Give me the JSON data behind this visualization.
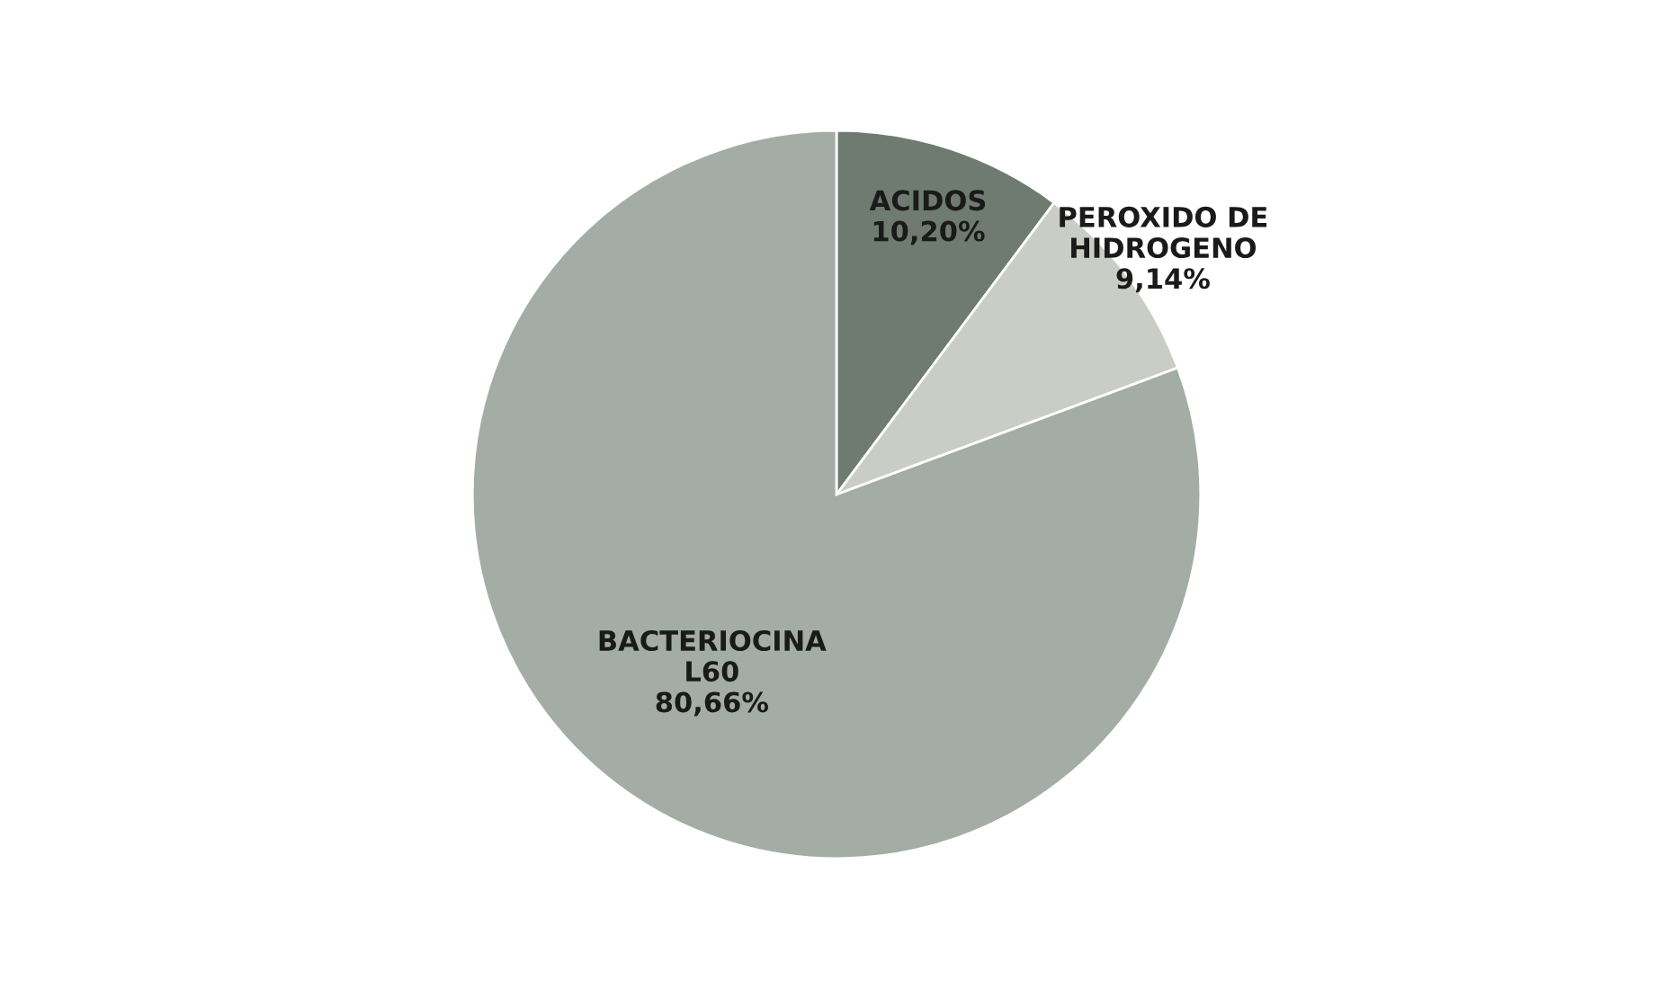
{
  "chart_data": {
    "type": "pie",
    "categories": [
      "ACIDOS",
      "PEROXIDO DE\nHIDROGENO",
      "BACTERIOCINA\nL60"
    ],
    "values": [
      10.2,
      9.14,
      80.66
    ],
    "value_labels": [
      "10,20%",
      "9,14%",
      "80,66%"
    ],
    "colors": [
      "#6f7b71",
      "#c9cdc5",
      "#a4ada5"
    ],
    "legend": false
  }
}
